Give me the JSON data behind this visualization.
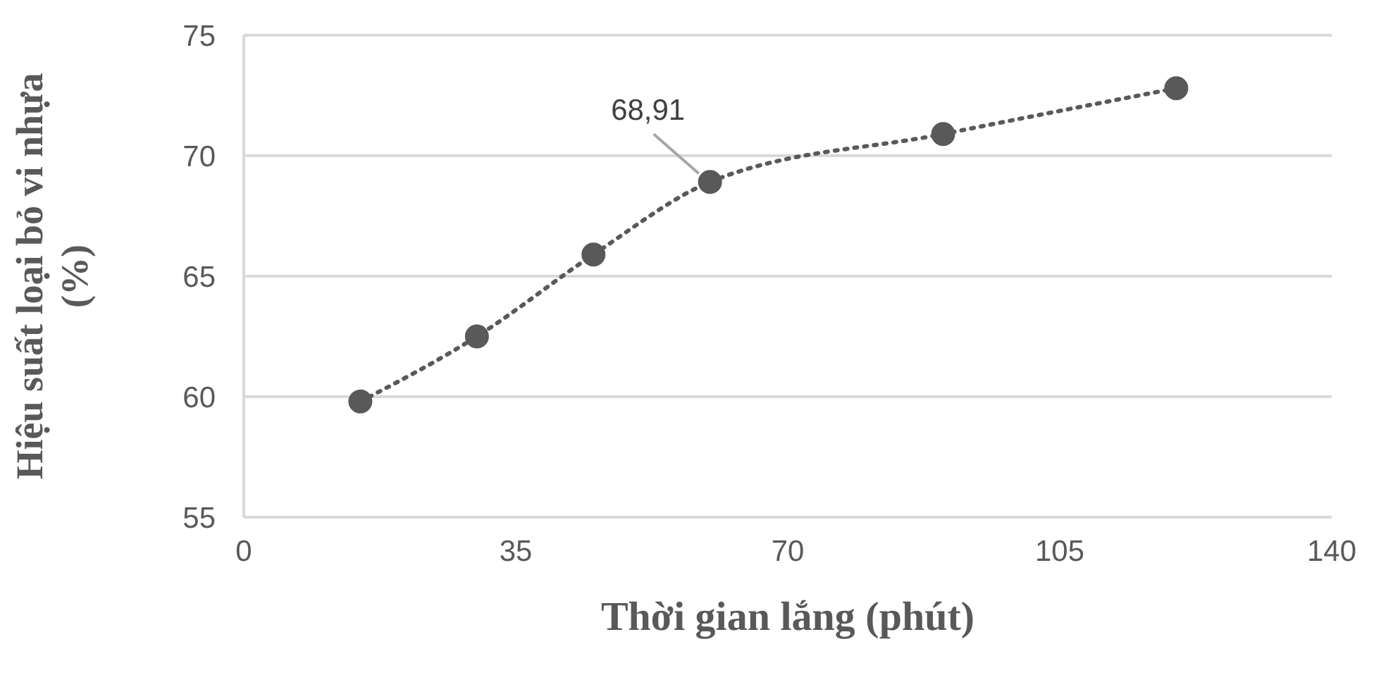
{
  "chart_data": {
    "type": "line",
    "xlabel": "Thời gian lắng (phút)",
    "ylabel": "Hiệu suất loại bỏ vi nhựa (%)",
    "x": [
      15,
      30,
      45,
      60,
      90,
      120
    ],
    "series": [
      {
        "color": "#595959",
        "values": [
          59.8,
          62.5,
          65.9,
          68.91,
          70.9,
          72.8
        ],
        "value_labels": [
          null,
          null,
          null,
          "68,91",
          null,
          null
        ]
      }
    ],
    "xlim": [
      0,
      140
    ],
    "xticks": [
      0,
      35,
      70,
      105,
      140
    ],
    "ylim": [
      55,
      75
    ],
    "yticks": [
      55,
      60,
      65,
      70,
      75
    ],
    "grid": "y",
    "marker": "circle",
    "line_style": "dotted",
    "legend": false
  }
}
